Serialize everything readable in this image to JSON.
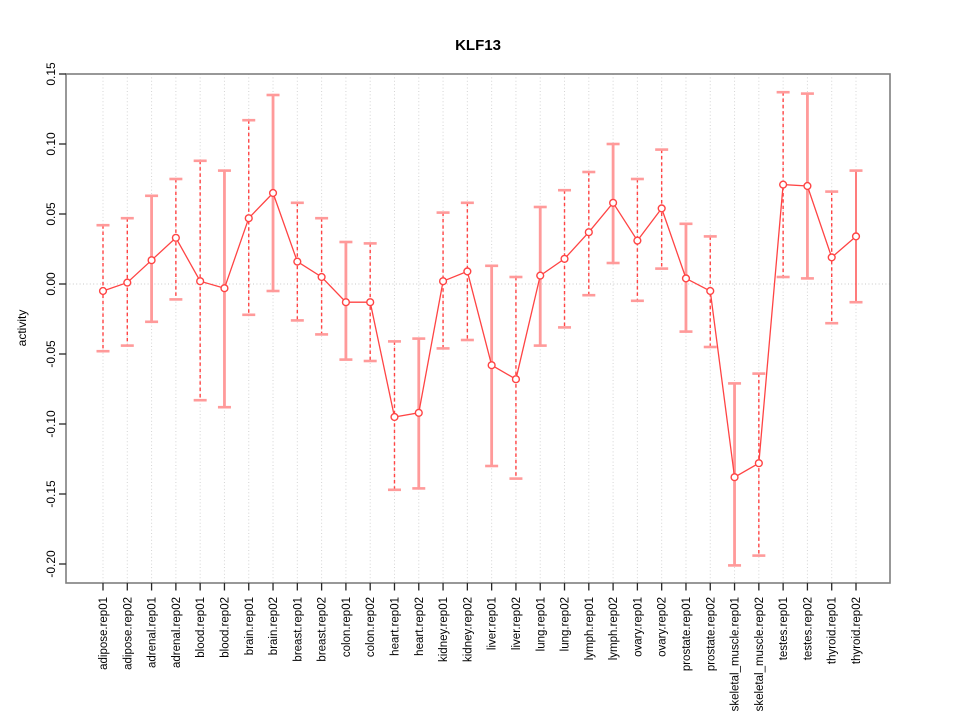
{
  "page": {
    "background": "#ffffff"
  },
  "chart_data": {
    "type": "line",
    "subtype": "points-with-error-bars",
    "title": "KLF13",
    "xlabel": "",
    "ylabel": "activity",
    "legend_position": "none",
    "grid": "dotted vertical gridline at each category; dotted horizontal reference line at y=0",
    "ylim": [
      -0.214,
      0.15
    ],
    "y_ticks": {
      "values": [
        0.15,
        0.1,
        0.05,
        0.0,
        -0.05,
        -0.1,
        -0.15,
        -0.2
      ],
      "labels": [
        "0.15",
        "0.10",
        "0.05",
        "0.00",
        "-0.05",
        "-0.10",
        "-0.15",
        "-0.20"
      ]
    },
    "categories": [
      "adipose.rep01",
      "adipose.rep02",
      "adrenal.rep01",
      "adrenal.rep02",
      "blood.rep01",
      "blood.rep02",
      "brain.rep01",
      "brain.rep02",
      "breast.rep01",
      "breast.rep02",
      "colon.rep01",
      "colon.rep02",
      "heart.rep01",
      "heart.rep02",
      "kidney.rep01",
      "kidney.rep02",
      "liver.rep01",
      "liver.rep02",
      "lung.rep01",
      "lung.rep02",
      "lymph.rep01",
      "lymph.rep02",
      "ovary.rep01",
      "ovary.rep02",
      "prostate.rep01",
      "prostate.rep02",
      "skeletal_muscle.rep01",
      "skeletal_muscle.rep02",
      "testes.rep01",
      "testes.rep02",
      "thyroid.rep01",
      "thyroid.rep02"
    ],
    "series": [
      {
        "name": "KLF13 activity",
        "marker": "open-circle",
        "values": [
          -0.005,
          0.001,
          0.017,
          0.033,
          0.002,
          -0.003,
          0.047,
          0.065,
          0.016,
          0.005,
          -0.013,
          -0.013,
          -0.095,
          -0.092,
          0.002,
          0.009,
          -0.058,
          -0.068,
          0.006,
          0.018,
          0.037,
          0.058,
          0.031,
          0.054,
          0.004,
          -0.005,
          -0.138,
          -0.128,
          0.071,
          0.07,
          0.019,
          0.034
        ],
        "error_high": [
          0.042,
          0.047,
          0.063,
          0.075,
          0.088,
          0.081,
          0.117,
          0.135,
          0.058,
          0.047,
          0.03,
          0.029,
          -0.041,
          -0.039,
          0.051,
          0.058,
          0.013,
          0.005,
          0.055,
          0.067,
          0.08,
          0.1,
          0.075,
          0.096,
          0.043,
          0.034,
          -0.071,
          -0.064,
          0.137,
          0.136,
          0.066,
          0.081
        ],
        "error_low": [
          -0.048,
          -0.044,
          -0.027,
          -0.011,
          -0.083,
          -0.088,
          -0.022,
          -0.005,
          -0.026,
          -0.036,
          -0.054,
          -0.055,
          -0.147,
          -0.146,
          -0.046,
          -0.04,
          -0.13,
          -0.139,
          -0.044,
          -0.031,
          -0.008,
          0.015,
          -0.012,
          0.011,
          -0.034,
          -0.045,
          -0.201,
          -0.194,
          0.005,
          0.004,
          -0.028,
          -0.013
        ],
        "stem_styles": [
          "dashed",
          "dashed",
          "solid",
          "dashed",
          "dashed",
          "solid",
          "dashed",
          "solid",
          "dashed",
          "dashed",
          "solid",
          "dashed",
          "dashed",
          "solid",
          "dashed",
          "dashed",
          "solid",
          "dashed",
          "solid",
          "dashed",
          "dashed",
          "solid",
          "dashed",
          "dashed",
          "solid",
          "dashed",
          "solid",
          "dashed",
          "dashed",
          "solid",
          "dashed",
          "solid_thin"
        ]
      }
    ],
    "colors": {
      "line": "#ff4444",
      "marker_stroke": "#ff4444",
      "marker_fill": "#ffffff",
      "error_cap": "#ff9a9a",
      "error_stem_solid": "#ff9a9a",
      "error_stem_dashed": "#ff4444",
      "gridline": "#d4d4d4",
      "zero_line": "#c9c9c9",
      "axis_box": "#7f7f7f",
      "tick": "#262626",
      "text": "#000000"
    }
  }
}
